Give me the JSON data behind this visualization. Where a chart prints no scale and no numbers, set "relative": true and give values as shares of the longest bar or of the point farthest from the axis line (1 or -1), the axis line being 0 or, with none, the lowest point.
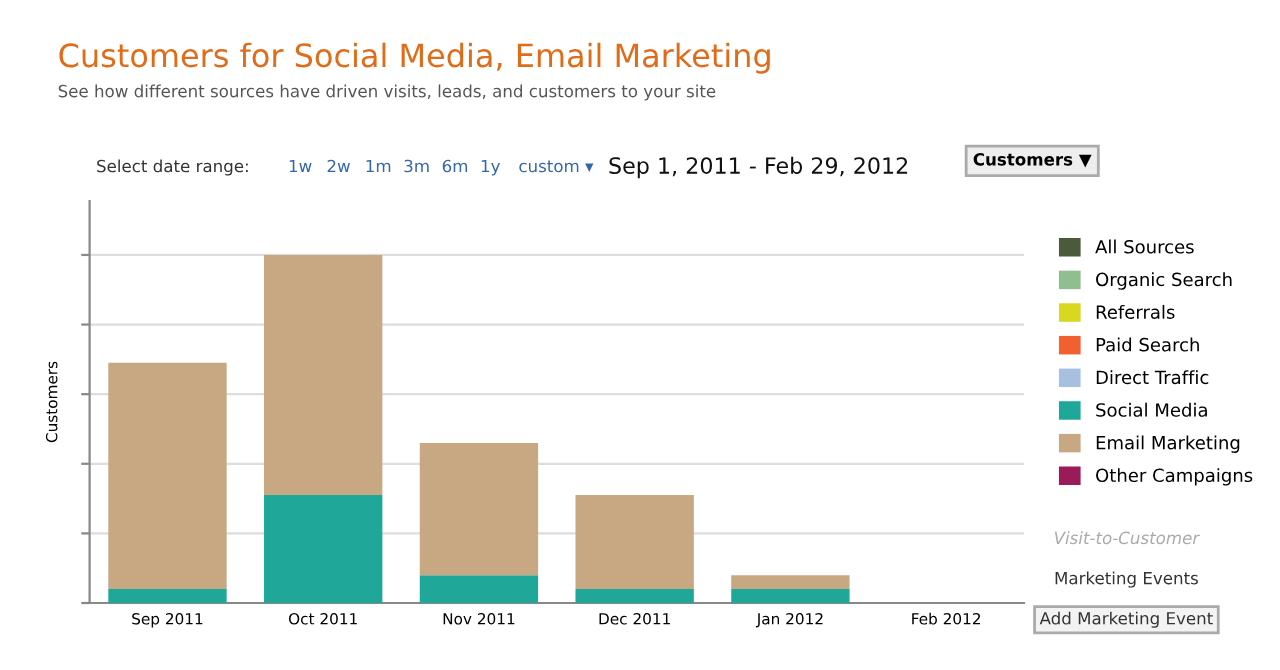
{
  "chart_data": {
    "type": "bar",
    "title": "Customers for Social Media, Email Marketing",
    "subtitle": "See how different sources have driven visits, leads, and customers to your site",
    "ylabel": "Customers",
    "categories": [
      "Sep 2011",
      "Oct 2011",
      "Nov 2011",
      "Dec 2011",
      "Jan 2012",
      "Feb 2012"
    ],
    "stacked": true,
    "relative": true,
    "grid": "y",
    "legend": "right",
    "series": [
      {
        "name": "All Sources",
        "color": "#4a5a3a",
        "values": [
          null,
          null,
          null,
          null,
          null,
          null
        ]
      },
      {
        "name": "Organic Search",
        "color": "#8fbf8f",
        "values": [
          null,
          null,
          null,
          null,
          null,
          null
        ]
      },
      {
        "name": "Referrals",
        "color": "#d8d820",
        "values": [
          null,
          null,
          null,
          null,
          null,
          null
        ]
      },
      {
        "name": "Paid Search",
        "color": "#f06030",
        "values": [
          null,
          null,
          null,
          null,
          null,
          null
        ]
      },
      {
        "name": "Direct Traffic",
        "color": "#a8c0e0",
        "values": [
          null,
          null,
          null,
          null,
          null,
          null
        ]
      },
      {
        "name": "Social Media",
        "color": "#1fa89a",
        "values": [
          0.04,
          0.31,
          0.08,
          0.04,
          0.04,
          0
        ]
      },
      {
        "name": "Email Marketing",
        "color": "#c8a882",
        "values": [
          0.65,
          0.69,
          0.38,
          0.27,
          0.04,
          0
        ]
      },
      {
        "name": "Other Campaigns",
        "color": "#9b1b5a",
        "values": [
          null,
          null,
          null,
          null,
          null,
          null
        ]
      }
    ],
    "annotations": [
      "Select date range:",
      "1w",
      "2w",
      "1m",
      "3m",
      "6m",
      "1y",
      "custom ▾",
      "Sep 1, 2011 - Feb 29, 2012",
      "Customers ▼",
      "Visit-to-Customer",
      "Marketing Events",
      "Add Marketing Event"
    ]
  }
}
